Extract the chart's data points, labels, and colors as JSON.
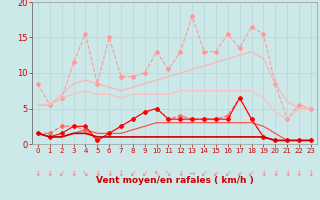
{
  "x": [
    0,
    1,
    2,
    3,
    4,
    5,
    6,
    7,
    8,
    9,
    10,
    11,
    12,
    13,
    14,
    15,
    16,
    17,
    18,
    19,
    20,
    21,
    22,
    23
  ],
  "series": [
    {
      "name": "rafales_max_line",
      "y": [
        8.5,
        5.5,
        6.5,
        11.5,
        15.5,
        8.5,
        15.0,
        9.5,
        9.5,
        10.0,
        13.0,
        10.5,
        13.0,
        18.0,
        13.0,
        13.0,
        15.5,
        13.5,
        16.5,
        15.5,
        8.5,
        3.5,
        5.5,
        5.0
      ],
      "color": "#FF9999",
      "linewidth": 0.8,
      "marker": "D",
      "markersize": 2.0,
      "linestyle": "--"
    },
    {
      "name": "rafales_smooth",
      "y": [
        5.5,
        5.5,
        7.0,
        8.5,
        9.0,
        8.5,
        8.0,
        7.5,
        8.0,
        8.5,
        9.0,
        9.5,
        10.0,
        10.5,
        11.0,
        11.5,
        12.0,
        12.5,
        13.0,
        12.0,
        8.5,
        6.0,
        5.0,
        5.0
      ],
      "color": "#FFB0B0",
      "linewidth": 0.8,
      "marker": null,
      "markersize": 0,
      "linestyle": "-"
    },
    {
      "name": "rafales_lower",
      "y": [
        5.5,
        5.5,
        6.5,
        7.0,
        7.5,
        7.0,
        7.0,
        6.5,
        7.0,
        7.0,
        7.0,
        7.0,
        7.5,
        7.5,
        7.5,
        7.5,
        7.5,
        7.5,
        7.5,
        6.5,
        4.5,
        3.5,
        5.0,
        5.0
      ],
      "color": "#FFBBBB",
      "linewidth": 0.8,
      "marker": null,
      "markersize": 0,
      "linestyle": "-"
    },
    {
      "name": "vent_max_line",
      "y": [
        1.5,
        1.5,
        2.5,
        2.5,
        2.0,
        0.5,
        1.5,
        2.5,
        3.5,
        4.5,
        5.0,
        3.5,
        4.0,
        3.5,
        3.5,
        3.5,
        4.0,
        6.5,
        3.5,
        1.0,
        0.5,
        0.5,
        0.5,
        0.5
      ],
      "color": "#FF6666",
      "linewidth": 0.8,
      "marker": "D",
      "markersize": 2.0,
      "linestyle": "--"
    },
    {
      "name": "vent_mean_smooth",
      "y": [
        1.5,
        1.0,
        1.0,
        1.5,
        2.0,
        1.5,
        1.5,
        1.5,
        2.0,
        2.5,
        3.0,
        3.0,
        3.0,
        3.0,
        3.0,
        3.0,
        3.0,
        3.0,
        3.0,
        2.5,
        1.5,
        0.5,
        0.5,
        0.5
      ],
      "color": "#FF4444",
      "linewidth": 0.8,
      "marker": null,
      "markersize": 0,
      "linestyle": "-"
    },
    {
      "name": "vent_inst",
      "y": [
        1.5,
        1.0,
        1.5,
        2.5,
        2.5,
        0.5,
        1.5,
        2.5,
        3.5,
        4.5,
        5.0,
        3.5,
        3.5,
        3.5,
        3.5,
        3.5,
        3.5,
        6.5,
        3.5,
        1.0,
        0.5,
        0.5,
        0.5,
        0.5
      ],
      "color": "#FF0000",
      "linewidth": 0.8,
      "marker": "D",
      "markersize": 2.0,
      "linestyle": "-"
    },
    {
      "name": "vent_base",
      "y": [
        1.5,
        1.0,
        1.0,
        1.5,
        1.5,
        1.0,
        1.0,
        1.0,
        1.0,
        1.0,
        1.0,
        1.0,
        1.0,
        1.0,
        1.0,
        1.0,
        1.0,
        1.0,
        1.0,
        1.0,
        0.5,
        0.5,
        0.5,
        0.5
      ],
      "color": "#CC0000",
      "linewidth": 1.2,
      "marker": null,
      "markersize": 0,
      "linestyle": "-"
    }
  ],
  "wind_arrows": [
    "↓",
    "↓",
    "↙",
    "↓",
    "↘",
    "↓",
    "↓",
    "↓",
    "↙",
    "↙",
    "↖",
    "↘",
    "↓",
    "→",
    "↙",
    "↙",
    "↙",
    "↙",
    "↙",
    "↓",
    "↓",
    "↓",
    "↓",
    "↓"
  ],
  "xlabel": "Vent moyen/en rafales ( km/h )",
  "xlim": [
    -0.5,
    23.5
  ],
  "ylim": [
    0,
    20
  ],
  "yticks": [
    0,
    5,
    10,
    15,
    20
  ],
  "xticks": [
    0,
    1,
    2,
    3,
    4,
    5,
    6,
    7,
    8,
    9,
    10,
    11,
    12,
    13,
    14,
    15,
    16,
    17,
    18,
    19,
    20,
    21,
    22,
    23
  ],
  "bg_color": "#CCE8E8",
  "grid_color": "#B8D8D8",
  "tick_color": "#CC0000",
  "label_color": "#CC0000",
  "arrow_color": "#FF7777"
}
